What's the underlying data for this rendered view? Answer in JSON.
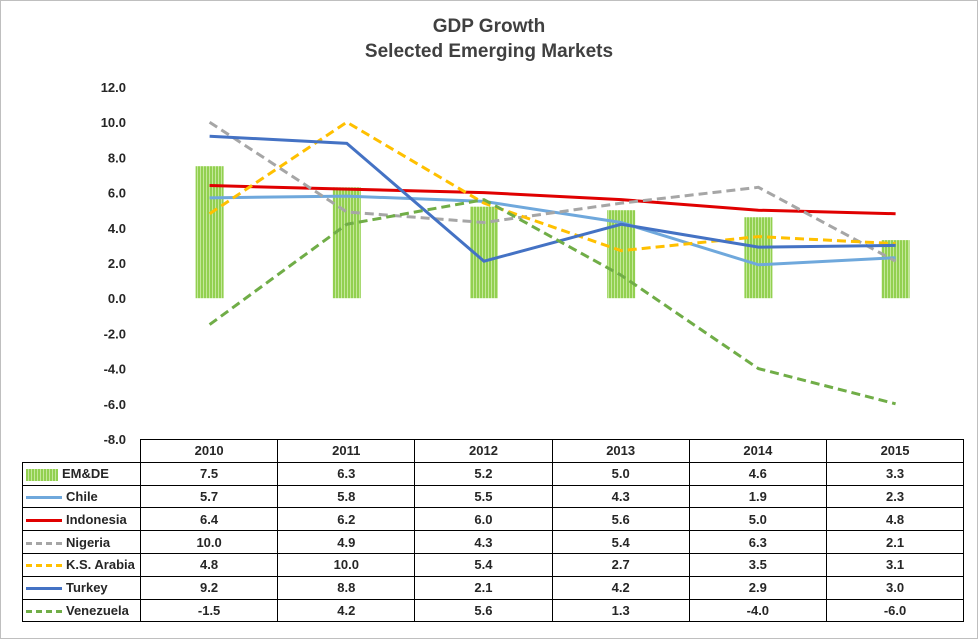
{
  "chart_data": {
    "type": "bar+line",
    "title": "GDP Growth",
    "subtitle": "Selected Emerging Markets",
    "categories": [
      "2010",
      "2011",
      "2012",
      "2013",
      "2014",
      "2015"
    ],
    "ylim": [
      -8.0,
      12.0
    ],
    "yticks": [
      "12.0",
      "10.0",
      "8.0",
      "6.0",
      "4.0",
      "2.0",
      "0.0",
      "-2.0",
      "-4.0",
      "-6.0",
      "-8.0"
    ],
    "ytick_values": [
      12,
      10,
      8,
      6,
      4,
      2,
      0,
      -2,
      -4,
      -6,
      -8
    ],
    "grid": false,
    "legend": "data-table",
    "series": [
      {
        "name": "EM&DE",
        "kind": "bar",
        "color": "#92d050",
        "values": [
          7.5,
          6.3,
          5.2,
          5.0,
          4.6,
          3.3
        ],
        "labels": [
          "7.5",
          "6.3",
          "5.2",
          "5.0",
          "4.6",
          "3.3"
        ]
      },
      {
        "name": "Chile",
        "kind": "line",
        "style": "solid",
        "color": "#6fa8dc",
        "values": [
          5.7,
          5.8,
          5.5,
          4.3,
          1.9,
          2.3
        ],
        "labels": [
          "5.7",
          "5.8",
          "5.5",
          "4.3",
          "1.9",
          "2.3"
        ]
      },
      {
        "name": "Indonesia",
        "kind": "line",
        "style": "solid",
        "color": "#e00000",
        "values": [
          6.4,
          6.2,
          6.0,
          5.6,
          5.0,
          4.8
        ],
        "labels": [
          "6.4",
          "6.2",
          "6.0",
          "5.6",
          "5.0",
          "4.8"
        ]
      },
      {
        "name": "Nigeria",
        "kind": "line",
        "style": "dashed",
        "color": "#a6a6a6",
        "values": [
          10.0,
          4.9,
          4.3,
          5.4,
          6.3,
          2.1
        ],
        "labels": [
          "10.0",
          "4.9",
          "4.3",
          "5.4",
          "6.3",
          "2.1"
        ]
      },
      {
        "name": "K.S. Arabia",
        "kind": "line",
        "style": "dashed",
        "color": "#ffc000",
        "values": [
          4.8,
          10.0,
          5.4,
          2.7,
          3.5,
          3.1
        ],
        "labels": [
          "4.8",
          "10.0",
          "5.4",
          "2.7",
          "3.5",
          "3.1"
        ]
      },
      {
        "name": "Turkey",
        "kind": "line",
        "style": "solid",
        "color": "#4472c4",
        "values": [
          9.2,
          8.8,
          2.1,
          4.2,
          2.9,
          3.0
        ],
        "labels": [
          "9.2",
          "8.8",
          "2.1",
          "4.2",
          "2.9",
          "3.0"
        ]
      },
      {
        "name": "Venezuela",
        "kind": "line",
        "style": "dashed",
        "color": "#70ad47",
        "values": [
          -1.5,
          4.2,
          5.6,
          1.3,
          -4.0,
          -6.0
        ],
        "labels": [
          "-1.5",
          "4.2",
          "5.6",
          "1.3",
          "-4.0",
          "-6.0"
        ]
      }
    ]
  }
}
